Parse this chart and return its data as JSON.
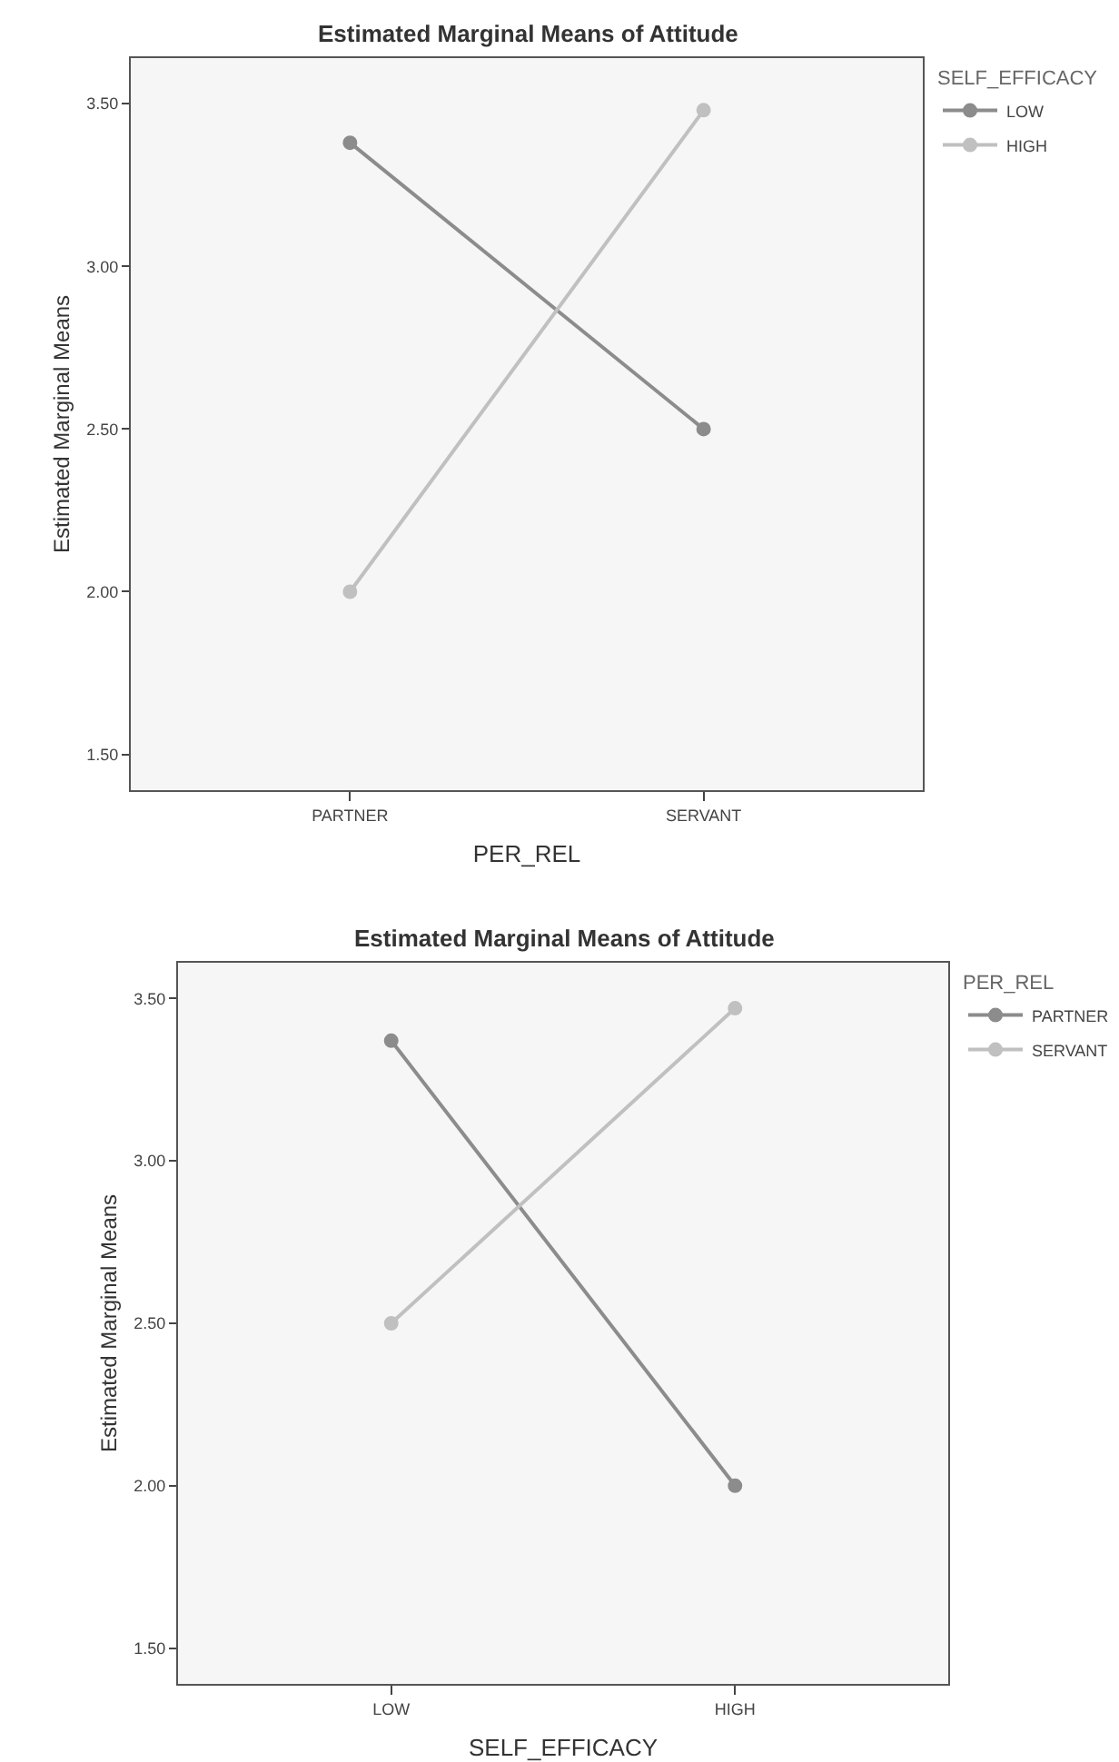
{
  "chart_data": [
    {
      "type": "line",
      "title": "Estimated Marginal Means of Attitude",
      "xlabel": "PER_REL",
      "ylabel": "Estimated Marginal Means",
      "legend_title": "SELF_EFFICACY",
      "categories": [
        "PARTNER",
        "SERVANT"
      ],
      "series": [
        {
          "name": "LOW",
          "color": "#8c8c8c",
          "values": [
            3.38,
            2.5
          ]
        },
        {
          "name": "HIGH",
          "color": "#c0c0c0",
          "values": [
            2.0,
            3.48
          ]
        }
      ],
      "ylim": [
        1.39,
        3.64
      ],
      "yticks": [
        {
          "value": 1.5,
          "label": "1.50"
        },
        {
          "value": 2.0,
          "label": "2.00"
        },
        {
          "value": 2.5,
          "label": "2.50"
        },
        {
          "value": 3.0,
          "label": "3.00"
        },
        {
          "value": 3.5,
          "label": "3.50"
        }
      ],
      "grid": false,
      "legend": "top right",
      "marker": "circle",
      "line_style": "solid"
    },
    {
      "type": "line",
      "title": "Estimated Marginal Means of Attitude",
      "xlabel": "SELF_EFFICACY",
      "ylabel": "Estimated Marginal Means",
      "legend_title": "PER_REL",
      "categories": [
        "LOW",
        "HIGH"
      ],
      "series": [
        {
          "name": "PARTNER",
          "color": "#8c8c8c",
          "values": [
            3.37,
            2.0
          ]
        },
        {
          "name": "SERVANT",
          "color": "#c0c0c0",
          "values": [
            2.5,
            3.47
          ]
        }
      ],
      "ylim": [
        1.39,
        3.61
      ],
      "yticks": [
        {
          "value": 1.5,
          "label": "1.50"
        },
        {
          "value": 2.0,
          "label": "2.00"
        },
        {
          "value": 2.5,
          "label": "2.50"
        },
        {
          "value": 3.0,
          "label": "3.00"
        },
        {
          "value": 3.5,
          "label": "3.50"
        }
      ],
      "grid": false,
      "legend": "top right",
      "marker": "circle",
      "line_style": "solid"
    }
  ]
}
